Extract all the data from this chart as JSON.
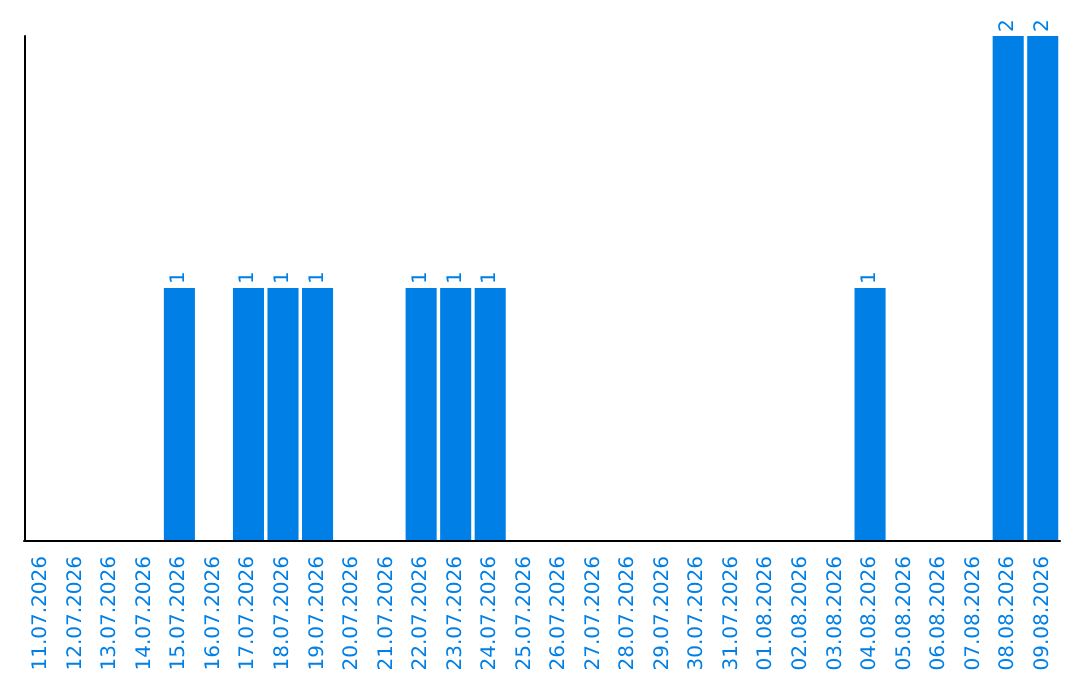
{
  "chart_data": {
    "type": "bar",
    "categories": [
      "11.07.2026",
      "12.07.2026",
      "13.07.2026",
      "14.07.2026",
      "15.07.2026",
      "16.07.2026",
      "17.07.2026",
      "18.07.2026",
      "19.07.2026",
      "20.07.2026",
      "21.07.2026",
      "22.07.2026",
      "23.07.2026",
      "24.07.2026",
      "25.07.2026",
      "26.07.2026",
      "27.07.2026",
      "28.07.2026",
      "29.07.2026",
      "30.07.2026",
      "31.07.2026",
      "01.08.2026",
      "02.08.2026",
      "03.08.2026",
      "04.08.2026",
      "05.08.2026",
      "06.08.2026",
      "07.08.2026",
      "08.08.2026",
      "09.08.2026"
    ],
    "values": [
      0,
      0,
      0,
      0,
      1,
      0,
      1,
      1,
      1,
      0,
      0,
      1,
      1,
      1,
      0,
      0,
      0,
      0,
      0,
      0,
      0,
      0,
      0,
      0,
      1,
      0,
      0,
      0,
      2,
      2
    ],
    "value_labels": [
      null,
      null,
      null,
      null,
      "1",
      null,
      "1",
      "1",
      "1",
      null,
      null,
      "1",
      "1",
      "1",
      null,
      null,
      null,
      null,
      null,
      null,
      null,
      null,
      null,
      null,
      "1",
      null,
      null,
      null,
      "2",
      "2"
    ],
    "color": "#0080e6",
    "tick_labels": "x"
  }
}
